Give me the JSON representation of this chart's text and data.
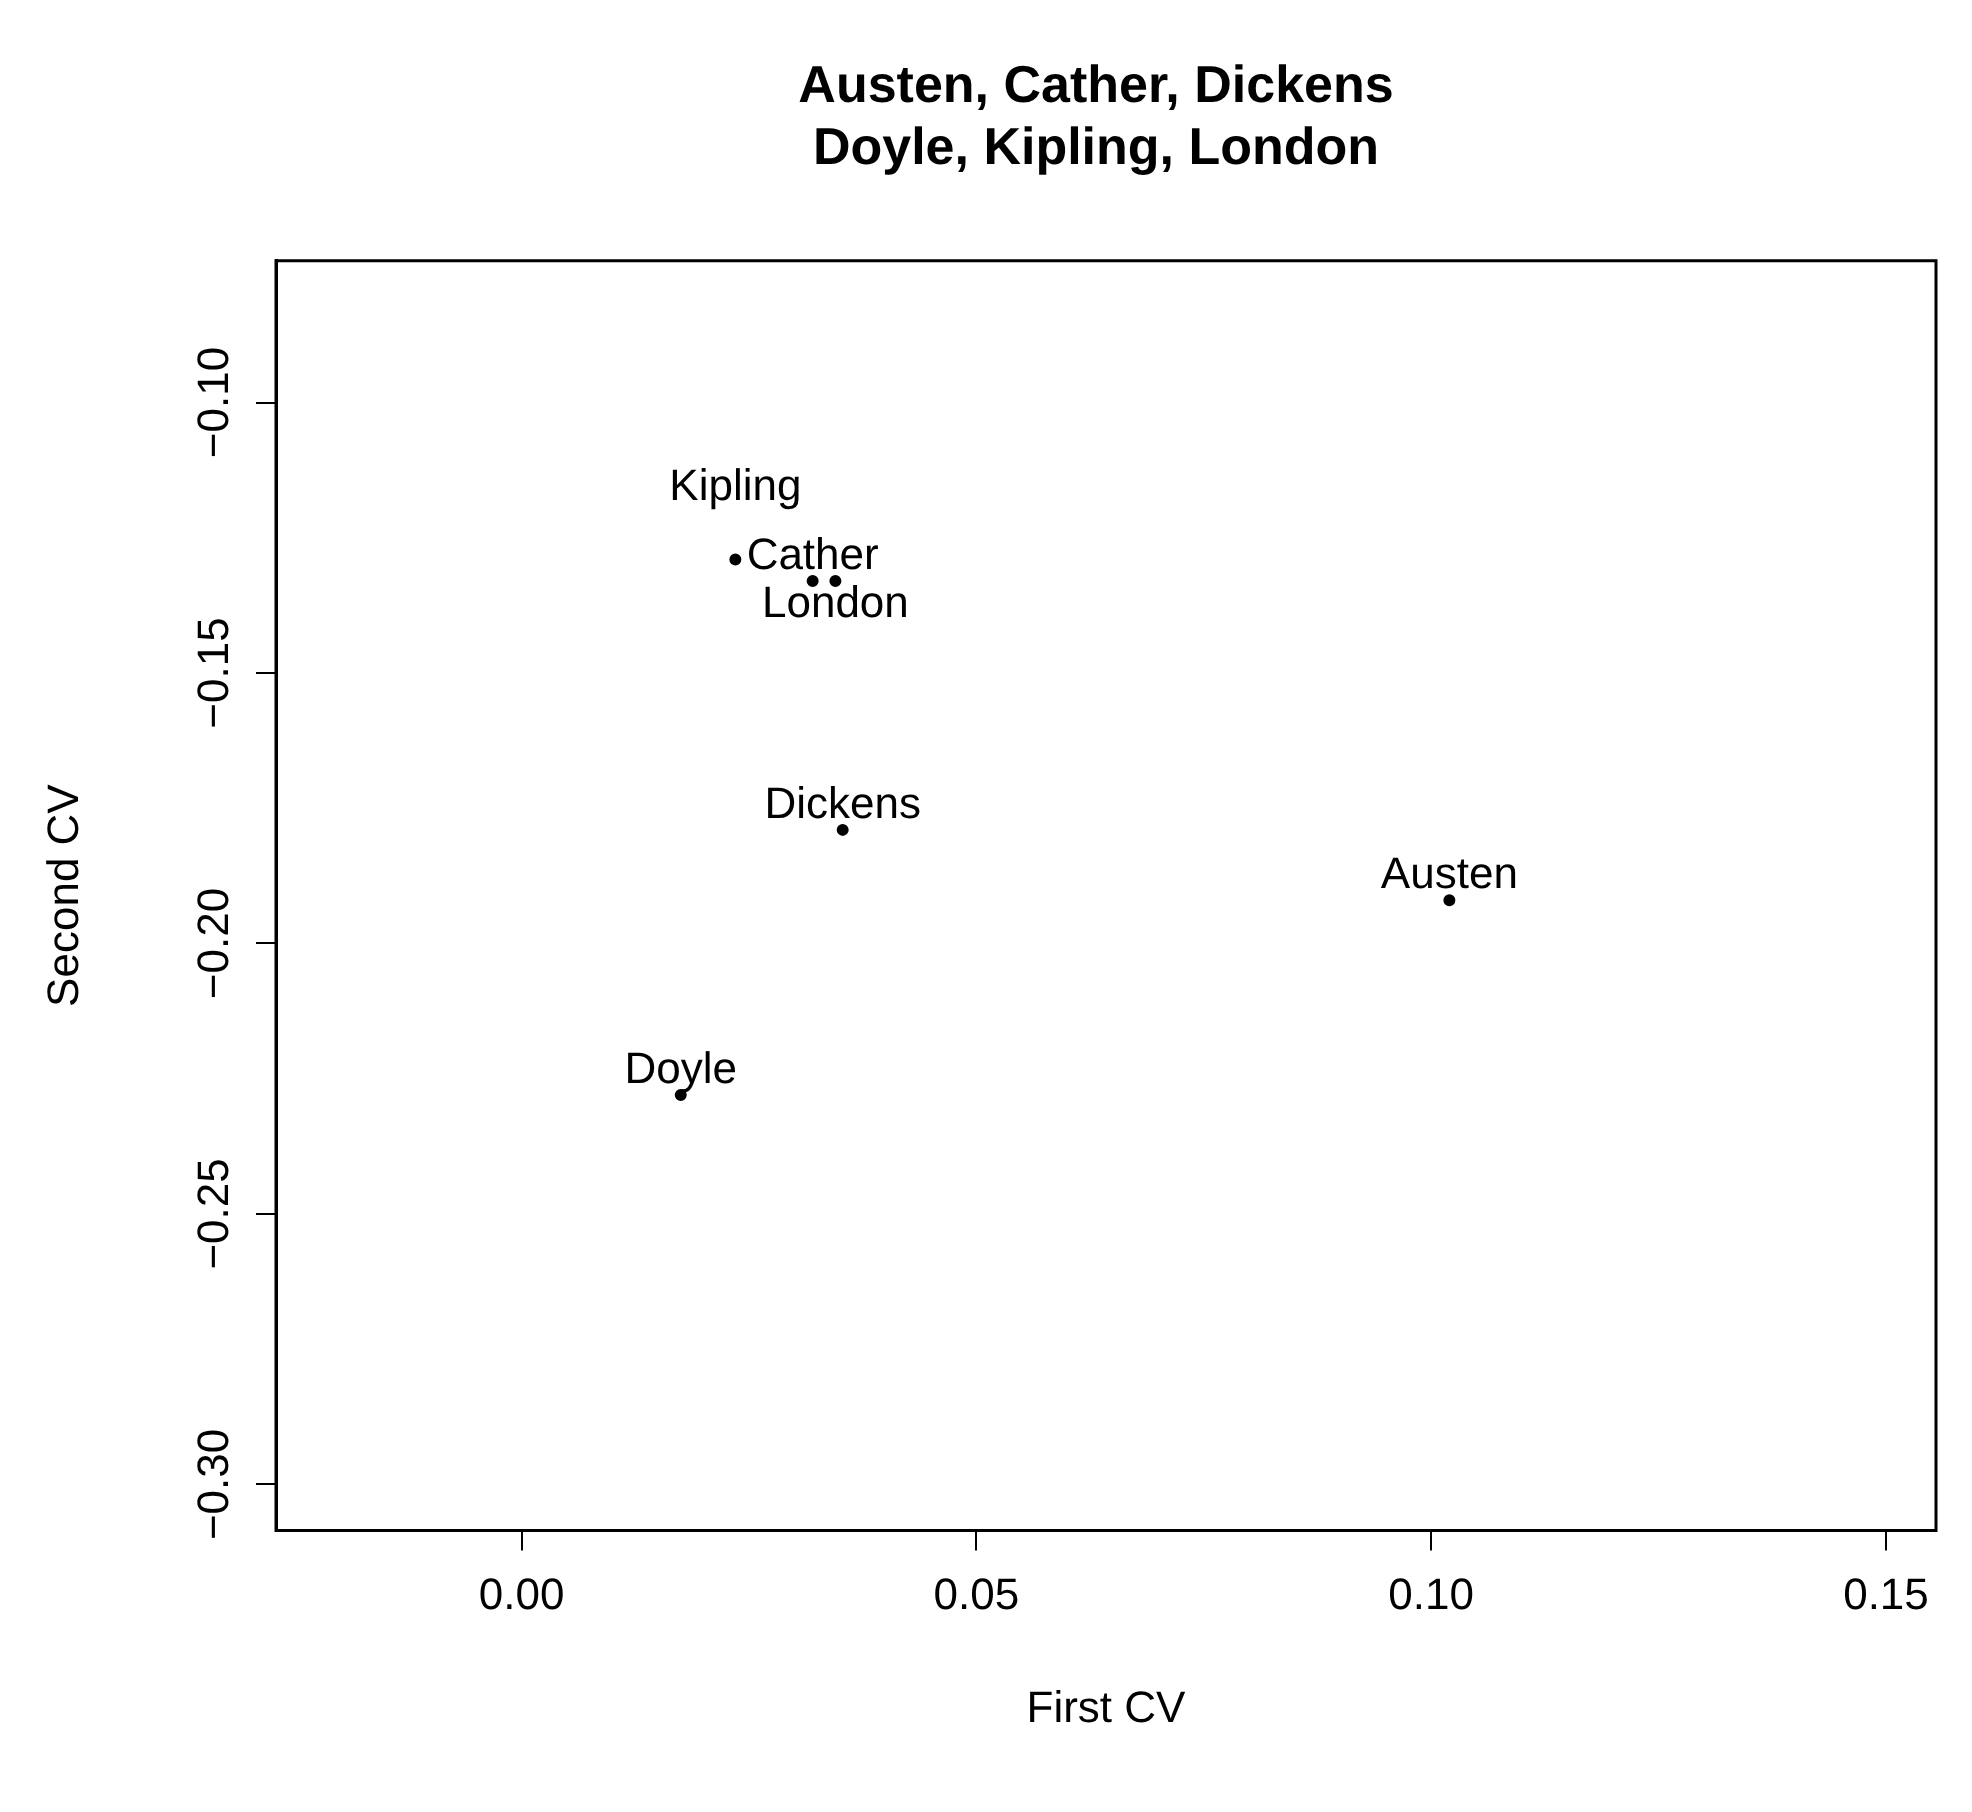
{
  "chart_data": {
    "type": "scatter",
    "title": "Austen, Cather, Dickens\nDoyle, Kipling, London",
    "xlabel": "First CV",
    "ylabel": "Second CV",
    "xlim": [
      -0.027,
      0.1555
    ],
    "ylim": [
      -0.3085,
      -0.0738
    ],
    "xticks": [
      {
        "value": 0,
        "label": "0.00"
      },
      0.05,
      {
        "value": 0.1,
        "label": "0.10"
      },
      0.15
    ],
    "yticks": [
      {
        "value": -0.3,
        "label": "−0.30"
      },
      {
        "value": -0.25,
        "label": "−0.25"
      },
      {
        "value": -0.2,
        "label": "−0.20"
      },
      {
        "value": -0.15,
        "label": "−0.15"
      },
      {
        "value": -0.1,
        "label": "−0.10"
      }
    ],
    "grid": false,
    "legend": false,
    "marker": "circle",
    "series": [
      {
        "name": "Austen",
        "color": "#000000",
        "x": [
          0.102
        ],
        "values": [
          -0.192
        ]
      },
      {
        "name": "Cather",
        "color": "#000000",
        "x": [
          0.032
        ],
        "values": [
          -0.133
        ]
      },
      {
        "name": "Dickens",
        "color": "#000000",
        "x": [
          0.0353
        ],
        "values": [
          -0.179
        ]
      },
      {
        "name": "Doyle",
        "color": "#000000",
        "x": [
          0.0175
        ],
        "values": [
          -0.228
        ]
      },
      {
        "name": "Kipling",
        "color": "#000000",
        "x": [
          0.0235
        ],
        "values": [
          -0.129
        ]
      },
      {
        "name": "London",
        "color": "#000000",
        "x": [
          0.0345
        ],
        "values": [
          -0.133
        ]
      }
    ]
  }
}
